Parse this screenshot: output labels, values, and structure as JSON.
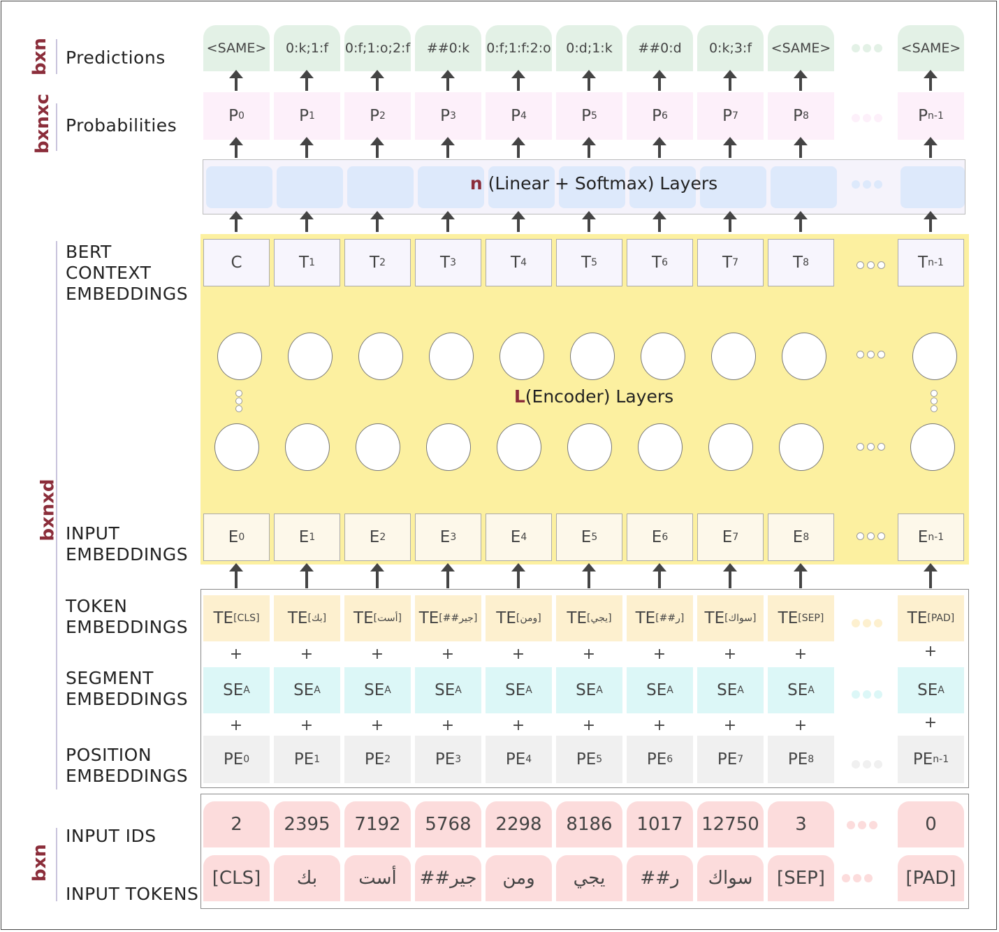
{
  "dims": {
    "predictions": "bxn",
    "probabilities": "bxnxc",
    "embeddings": "bxnxd",
    "inputs": "bxn"
  },
  "labels": {
    "predictions": "Predictions",
    "probabilities": "Probabilities",
    "bert": [
      "BERT",
      "CONTEXT",
      "EMBEDDINGS"
    ],
    "input_emb": [
      "INPUT",
      "EMBEDDINGS"
    ],
    "token_emb": [
      "TOKEN",
      "EMBEDDINGS"
    ],
    "segment_emb": [
      "SEGMENT",
      "EMBEDDINGS"
    ],
    "position_emb": [
      "POSITION",
      "EMBEDDINGS"
    ],
    "input_ids": "INPUT IDS",
    "input_tokens": "INPUT TOKENS"
  },
  "linear_layer": {
    "n": "n",
    "text": " (Linear + Softmax) Layers"
  },
  "encoder_layer": {
    "l": "L",
    "text": "(Encoder) Layers"
  },
  "plus": "+",
  "colors": {
    "dim": "#8b2d3a",
    "prediction": "#e3f1e6",
    "probability": "#fdf0fa",
    "linear": "#dde9fb",
    "encoder": "#fcf0a0",
    "te": "#fdf0cf",
    "se": "#dcf7f7",
    "pe": "#f0f0f0",
    "ids": "#fcdcdc"
  },
  "predictions": [
    "<SAME>",
    "0:k;1:f",
    "0:f;1:o;2:f",
    "##0:k",
    "0:f;1:f:2:o",
    "0:d;1:k",
    "##0:d",
    "0:k;3:f",
    "<SAME>",
    "<SAME>"
  ],
  "probabilities": [
    [
      "P",
      "0"
    ],
    [
      "P",
      "1"
    ],
    [
      "P",
      "2"
    ],
    [
      "P",
      "3"
    ],
    [
      "P",
      "4"
    ],
    [
      "P",
      "5"
    ],
    [
      "P",
      "6"
    ],
    [
      "P",
      "7"
    ],
    [
      "P",
      "8"
    ],
    [
      "P",
      "n-1"
    ]
  ],
  "context": [
    [
      "C",
      ""
    ],
    [
      "T",
      "1"
    ],
    [
      "T",
      "2"
    ],
    [
      "T",
      "3"
    ],
    [
      "T",
      "4"
    ],
    [
      "T",
      "5"
    ],
    [
      "T",
      "6"
    ],
    [
      "T",
      "7"
    ],
    [
      "T",
      "8"
    ],
    [
      "T",
      "n-1"
    ]
  ],
  "input_embeddings": [
    [
      "E",
      "0"
    ],
    [
      "E",
      "1"
    ],
    [
      "E",
      "2"
    ],
    [
      "E",
      "3"
    ],
    [
      "E",
      "4"
    ],
    [
      "E",
      "5"
    ],
    [
      "E",
      "6"
    ],
    [
      "E",
      "7"
    ],
    [
      "E",
      "8"
    ],
    [
      "E",
      "n-1"
    ]
  ],
  "token_embeddings": [
    [
      "TE",
      "[CLS]"
    ],
    [
      "TE",
      "[بك]"
    ],
    [
      "TE",
      "[أست]"
    ],
    [
      "TE",
      "[##جير]"
    ],
    [
      "TE",
      "[ومن]"
    ],
    [
      "TE",
      "[يجي]"
    ],
    [
      "TE",
      "[##ر]"
    ],
    [
      "TE",
      "[سواك]"
    ],
    [
      "TE",
      "[SEP]"
    ],
    [
      "TE",
      "[PAD]"
    ]
  ],
  "segment_embeddings": [
    [
      "SE",
      "A"
    ],
    [
      "SE",
      "A"
    ],
    [
      "SE",
      "A"
    ],
    [
      "SE",
      "A"
    ],
    [
      "SE",
      "A"
    ],
    [
      "SE",
      "A"
    ],
    [
      "SE",
      "A"
    ],
    [
      "SE",
      "A"
    ],
    [
      "SE",
      "A"
    ],
    [
      "SE",
      "A"
    ]
  ],
  "position_embeddings": [
    [
      "PE",
      "0"
    ],
    [
      "PE",
      "1"
    ],
    [
      "PE",
      "2"
    ],
    [
      "PE",
      "3"
    ],
    [
      "PE",
      "4"
    ],
    [
      "PE",
      "5"
    ],
    [
      "PE",
      "6"
    ],
    [
      "PE",
      "7"
    ],
    [
      "PE",
      "8"
    ],
    [
      "PE",
      "n-1"
    ]
  ],
  "input_ids": [
    "2",
    "2395",
    "7192",
    "5768",
    "2298",
    "8186",
    "1017",
    "12750",
    "3",
    "0"
  ],
  "input_tokens": [
    "[CLS]",
    "بك",
    "أست",
    "##جير",
    "ومن",
    "يجي",
    "##ر",
    "سواك",
    "[SEP]",
    "[PAD]"
  ]
}
